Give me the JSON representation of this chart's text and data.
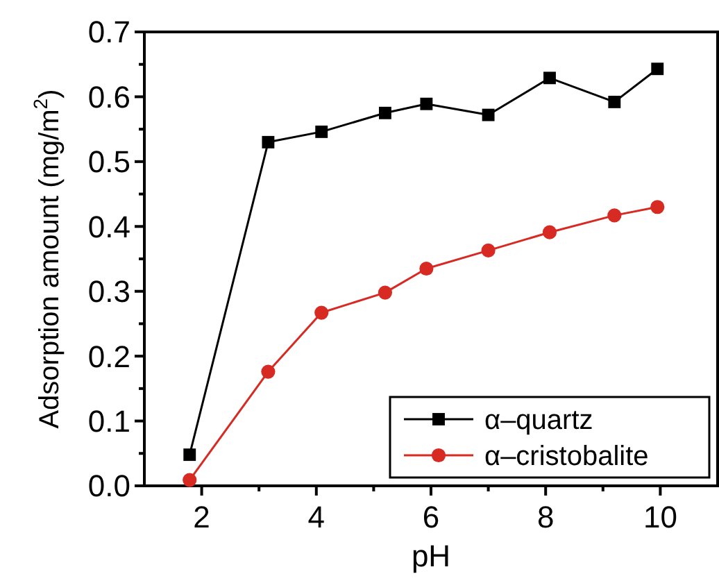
{
  "chart_data": {
    "type": "line",
    "xlabel": "pH",
    "ylabel": "Adsorption amount (mg/m$^{2}$)",
    "xlim": [
      1,
      11
    ],
    "xticks": [
      2,
      4,
      6,
      8,
      10
    ],
    "ylim": [
      0,
      0.7
    ],
    "yticks": [
      {
        "value": 0,
        "label": "0.0"
      },
      0.1,
      0.2,
      0.3,
      0.4,
      0.5,
      0.6,
      0.7
    ],
    "legend": "bottom right",
    "grid": false,
    "series": [
      {
        "name": "α–quartz",
        "color": "#000000",
        "marker": "square",
        "x": [
          1.79,
          3.16,
          4.09,
          5.2,
          5.92,
          7.0,
          8.07,
          9.2,
          9.95
        ],
        "values": [
          0.048,
          0.53,
          0.546,
          0.575,
          0.589,
          0.572,
          0.629,
          0.592,
          0.643
        ]
      },
      {
        "name": "α–cristobalite",
        "color": "#d62a22",
        "marker": "circle",
        "x": [
          1.79,
          3.16,
          4.09,
          5.2,
          5.92,
          7.0,
          8.07,
          9.2,
          9.95
        ],
        "values": [
          0.009,
          0.176,
          0.267,
          0.298,
          0.335,
          0.363,
          0.391,
          0.417,
          0.43
        ]
      }
    ]
  }
}
